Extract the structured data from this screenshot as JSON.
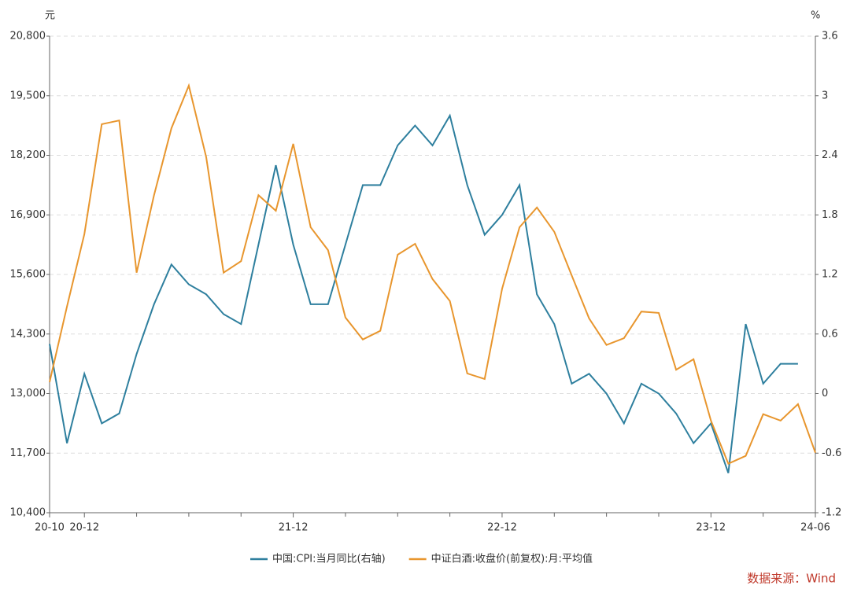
{
  "chart_data": {
    "type": "line",
    "y_unit": "元",
    "y2_unit": "%",
    "categories": [
      "20-10",
      null,
      "20-12",
      null,
      null,
      null,
      null,
      null,
      null,
      null,
      null,
      null,
      null,
      null,
      "21-12",
      null,
      null,
      null,
      null,
      null,
      null,
      null,
      null,
      null,
      null,
      null,
      "22-12",
      null,
      null,
      null,
      null,
      null,
      null,
      null,
      null,
      null,
      null,
      null,
      "23-12",
      null,
      null,
      null,
      null,
      null,
      "24-06"
    ],
    "series": [
      {
        "name": "中国:CPI:当月同比(右轴)",
        "color": "#2e7f9e",
        "axis": "y2",
        "values": [
          0.5,
          -0.5,
          0.2,
          -0.3,
          -0.2,
          0.4,
          0.9,
          1.3,
          1.1,
          1.0,
          0.8,
          0.7,
          1.5,
          2.3,
          1.5,
          0.9,
          0.9,
          1.5,
          2.1,
          2.1,
          2.5,
          2.7,
          2.5,
          2.8,
          2.1,
          1.6,
          1.8,
          2.1,
          1.0,
          0.7,
          0.1,
          0.2,
          0.0,
          -0.3,
          0.1,
          0.0,
          -0.2,
          -0.5,
          -0.3,
          -0.8,
          0.7,
          0.1,
          0.3,
          0.3,
          null
        ]
      },
      {
        "name": "中证白酒:收盘价(前复权):月:平均值",
        "color": "#e8962e",
        "values": [
          13250,
          14900,
          16480,
          18880,
          18960,
          15640,
          17330,
          18790,
          19720,
          18160,
          15640,
          15890,
          17330,
          16990,
          18450,
          16630,
          16130,
          14660,
          14180,
          14370,
          16030,
          16270,
          15500,
          15020,
          13440,
          13320,
          15290,
          16630,
          17060,
          16530,
          15580,
          14640,
          14060,
          14210,
          14790,
          14760,
          13520,
          13750,
          12410,
          11470,
          11640,
          12550,
          12410,
          12770,
          11710
        ]
      }
    ],
    "ylim": [
      10400,
      20800
    ],
    "yticks": [
      {
        "value": 10400,
        "label": "10,400"
      },
      {
        "value": 11700,
        "label": "11,700"
      },
      {
        "value": 13000,
        "label": "13,000"
      },
      {
        "value": 14300,
        "label": "14,300"
      },
      {
        "value": 15600,
        "label": "15,600"
      },
      {
        "value": 16900,
        "label": "16,900"
      },
      {
        "value": 18200,
        "label": "18,200"
      },
      {
        "value": 19500,
        "label": "19,500"
      },
      {
        "value": 20800,
        "label": "20,800"
      }
    ],
    "y2lim": [
      -1.2,
      3.6
    ],
    "y2ticks": [
      -1.2,
      -0.6,
      0,
      0.6,
      1.2,
      1.8,
      2.4,
      3,
      3.6
    ],
    "grid": true,
    "legend": "bottom",
    "source": "数据来源：Wind"
  }
}
